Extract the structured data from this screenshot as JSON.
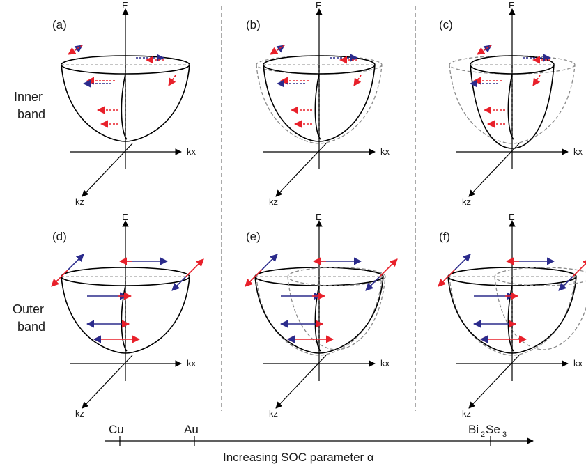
{
  "panels": [
    {
      "id": "a",
      "label": "(a)",
      "e_label": "E",
      "kx_label": "kx",
      "kz_label": "kz"
    },
    {
      "id": "b",
      "label": "(b)",
      "e_label": "E",
      "kx_label": "kx",
      "kz_label": "kz"
    },
    {
      "id": "c",
      "label": "(c)",
      "e_label": "E",
      "kx_label": "kx",
      "kz_label": "kz"
    },
    {
      "id": "d",
      "label": "(d)",
      "e_label": "E",
      "kx_label": "kx",
      "kz_label": "kz"
    },
    {
      "id": "e",
      "label": "(e)",
      "e_label": "E",
      "kx_label": "kx",
      "kz_label": "kz"
    },
    {
      "id": "f",
      "label": "(f)",
      "e_label": "E",
      "kx_label": "kx",
      "kz_label": "kz"
    }
  ],
  "rows": {
    "inner": [
      "Inner",
      "band"
    ],
    "outer": [
      "Outer",
      "band"
    ]
  },
  "materials": {
    "cu": "Cu",
    "au": "Au",
    "bi": "Bi",
    "bi_sub": "2",
    "se": "Se",
    "se_sub": "3"
  },
  "axis_title": "Increasing SOC parameter α",
  "colors": {
    "red": "#e8202a",
    "blue": "#2b2b8c",
    "gray": "#8a8a8a",
    "black": "#000000"
  }
}
